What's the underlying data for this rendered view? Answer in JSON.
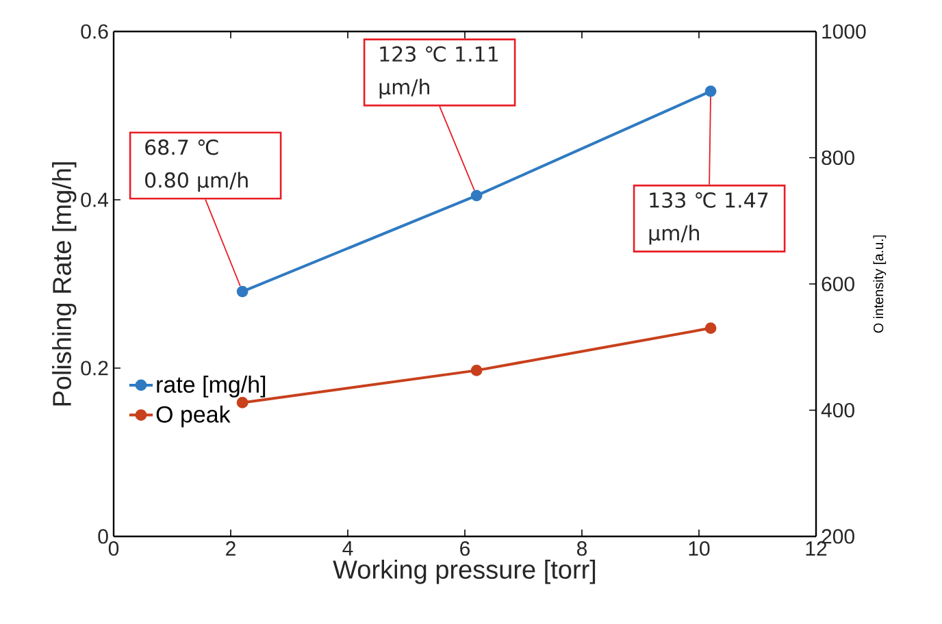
{
  "chart_data": {
    "type": "line",
    "xlabel": "Working pressure [torr]",
    "ylabel": "Polishing Rate [mg/h]",
    "y2label": "O intensity [a.u.]",
    "x": [
      2.2,
      6.2,
      10.2
    ],
    "series": [
      {
        "name": "rate [mg/h]",
        "color": "#2f7ac2",
        "values": [
          0.291,
          0.405,
          0.529
        ]
      },
      {
        "name": "O peak",
        "color": "#c8401c",
        "values": [
          412,
          463,
          530
        ],
        "axis": "y2"
      }
    ],
    "xlim": [
      0,
      12
    ],
    "xticks": [
      0,
      2,
      4,
      6,
      8,
      10,
      12
    ],
    "ylim": [
      0,
      0.6
    ],
    "yticks": [
      0,
      0.2,
      0.4,
      0.6
    ],
    "y2lim": [
      200,
      1000
    ],
    "y2ticks": [
      200,
      400,
      600,
      800,
      1000
    ],
    "annotations": [
      {
        "text": "68.7 ℃ 0.80 μm/h",
        "x": 2.2,
        "y": 0.291
      },
      {
        "text": "123 ℃ 1.11 μm/h",
        "x": 6.2,
        "y": 0.405
      },
      {
        "text": "133 ℃ 1.47 μm/h",
        "x": 10.2,
        "y": 0.529
      }
    ],
    "legend": "left",
    "grid": false,
    "marker": "circle",
    "line_style": "solid"
  }
}
